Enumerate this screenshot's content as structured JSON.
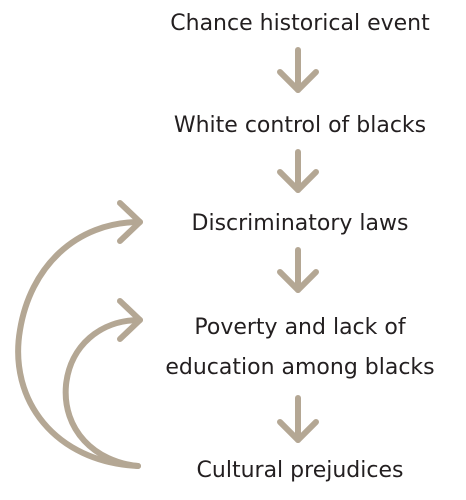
{
  "nodes": [
    {
      "text": "Chance historical event"
    },
    {
      "text": "White control of blacks"
    },
    {
      "text": "Discriminatory laws"
    },
    {
      "text": "Poverty and lack of\neducation among blacks"
    },
    {
      "text": "Cultural prejudices"
    }
  ],
  "edges": [
    {
      "from": 0,
      "to": 1
    },
    {
      "from": 1,
      "to": 2
    },
    {
      "from": 2,
      "to": 3
    },
    {
      "from": 3,
      "to": 4
    },
    {
      "from": 4,
      "to": 2
    },
    {
      "from": 4,
      "to": 3
    }
  ],
  "colors": {
    "arrow": "#b4a794",
    "text": "#231f20"
  }
}
